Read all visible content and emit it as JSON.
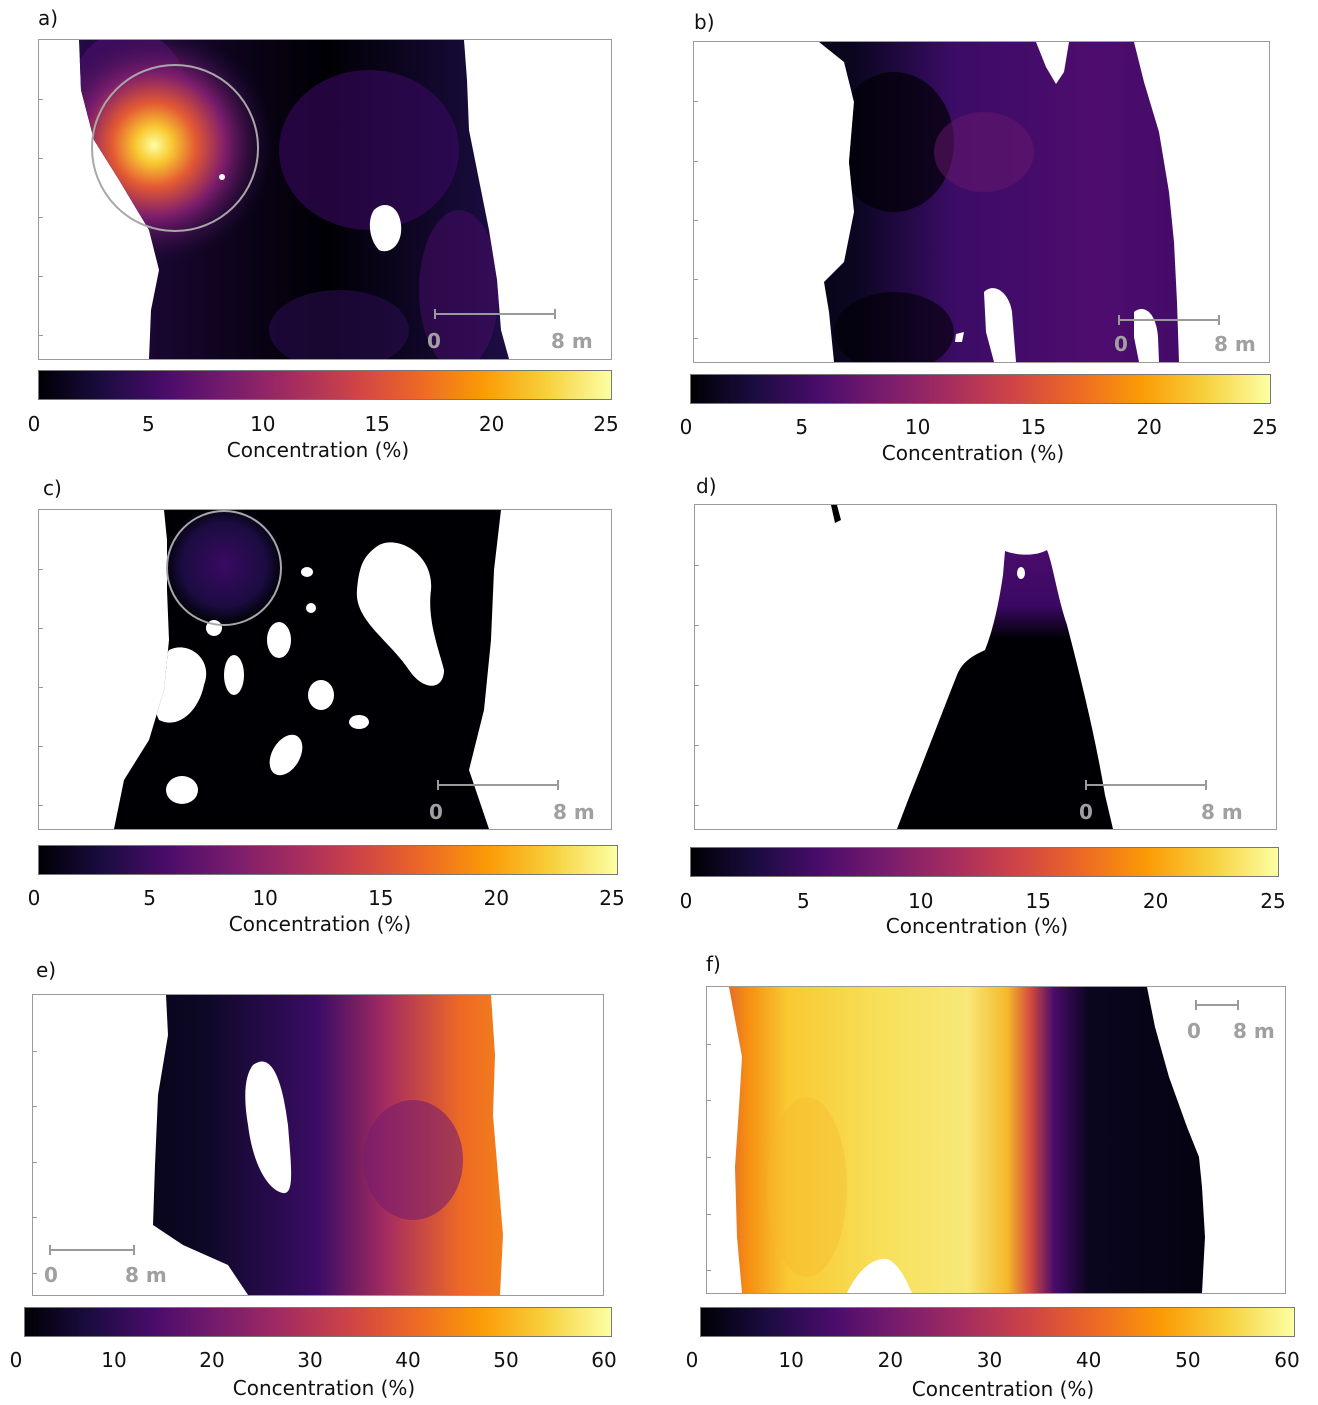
{
  "colors": {
    "inferno": [
      "#000004",
      "#1b0c41",
      "#4a0c6b",
      "#781c6d",
      "#a52c60",
      "#cf4446",
      "#ed6925",
      "#fb9b06",
      "#f7d13d",
      "#fcffa4"
    ],
    "circle": "#a8a8a8",
    "scale_bar": "#9a9a9a"
  },
  "panels": [
    {
      "label": "a)",
      "cbar_ticks": [
        "0",
        "5",
        "10",
        "15",
        "20",
        "25"
      ],
      "cbar_label": "Concentration (%)",
      "scale_start": "0",
      "scale_end": "8 m"
    },
    {
      "label": "b)",
      "cbar_ticks": [
        "0",
        "5",
        "10",
        "15",
        "20",
        "25"
      ],
      "cbar_label": "Concentration (%)",
      "scale_start": "0",
      "scale_end": "8 m"
    },
    {
      "label": "c)",
      "cbar_ticks": [
        "0",
        "5",
        "10",
        "15",
        "20",
        "25"
      ],
      "cbar_label": "Concentration (%)",
      "scale_start": "0",
      "scale_end": "8 m"
    },
    {
      "label": "d)",
      "cbar_ticks": [
        "0",
        "5",
        "10",
        "15",
        "20",
        "25"
      ],
      "cbar_label": "Concentration (%)",
      "scale_start": "0",
      "scale_end": "8 m"
    },
    {
      "label": "e)",
      "cbar_ticks": [
        "0",
        "10",
        "20",
        "30",
        "40",
        "50",
        "60"
      ],
      "cbar_label": "Concentration (%)",
      "scale_start": "0",
      "scale_end": "8 m"
    },
    {
      "label": "f)",
      "cbar_ticks": [
        "0",
        "10",
        "20",
        "30",
        "40",
        "50",
        "60"
      ],
      "cbar_label": "Concentration (%)",
      "scale_start": "0",
      "scale_end": "8 m"
    }
  ],
  "chart_data": [
    {
      "type": "heatmap",
      "panel": "a)",
      "colorbar_range": [
        0,
        25
      ],
      "colorbar_label": "Concentration (%)",
      "scale_bar": "8 m",
      "max_value_approx": 25,
      "highlight": "circled hotspot"
    },
    {
      "type": "heatmap",
      "panel": "b)",
      "colorbar_range": [
        0,
        25
      ],
      "colorbar_label": "Concentration (%)",
      "scale_bar": "8 m",
      "max_value_approx": 10
    },
    {
      "type": "heatmap",
      "panel": "c)",
      "colorbar_range": [
        0,
        25
      ],
      "colorbar_label": "Concentration (%)",
      "scale_bar": "8 m",
      "max_value_approx": 4,
      "highlight": "circled area"
    },
    {
      "type": "heatmap",
      "panel": "d)",
      "colorbar_range": [
        0,
        25
      ],
      "colorbar_label": "Concentration (%)",
      "scale_bar": "8 m",
      "max_value_approx": 4
    },
    {
      "type": "heatmap",
      "panel": "e)",
      "colorbar_range": [
        0,
        60
      ],
      "colorbar_label": "Concentration (%)",
      "scale_bar": "8 m",
      "max_value_approx": 45
    },
    {
      "type": "heatmap",
      "panel": "f)",
      "colorbar_range": [
        0,
        60
      ],
      "colorbar_label": "Concentration (%)",
      "scale_bar": "8 m",
      "max_value_approx": 58
    }
  ]
}
